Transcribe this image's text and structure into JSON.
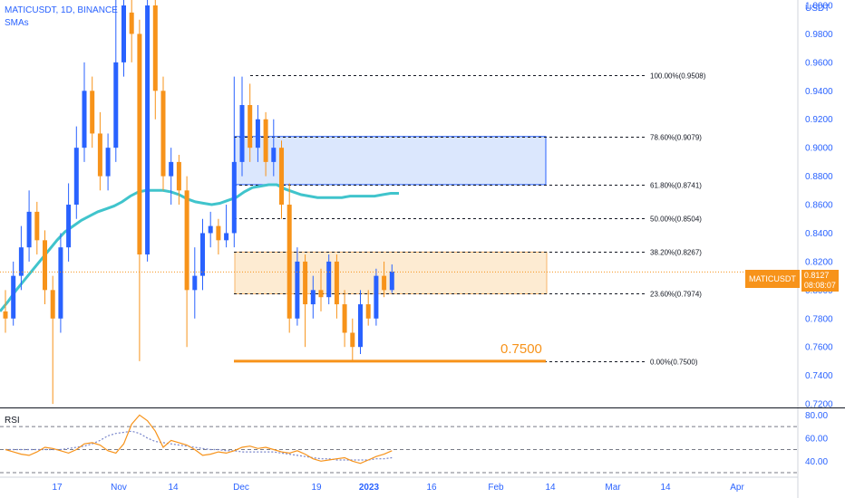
{
  "header": {
    "title": "MATICUSDT, 1D, BINANCE",
    "indicator": "SMAs",
    "currency": "USDT",
    "rsi_label": "RSI"
  },
  "price_badge": {
    "symbol": "MATICUSDT",
    "price": "0.8127",
    "countdown": "08:08:07"
  },
  "annotation": "0.7500",
  "colors": {
    "up": "#2962ff",
    "down": "#f7931a",
    "sma": "#40c4cc",
    "rsi": "#f7931a",
    "rsi_ma": "#7986cb",
    "blue_box": "#dbe7fd",
    "orange_box": "#fdebd2",
    "axis_text": "#2962ff"
  },
  "chart_data": {
    "type": "candlestick",
    "symbol": "MATICUSDT",
    "interval": "1D",
    "exchange": "BINANCE",
    "y_ticks": [
      "1.0000",
      "0.9800",
      "0.9600",
      "0.9400",
      "0.9200",
      "0.9000",
      "0.8800",
      "0.8600",
      "0.8400",
      "0.8200",
      "0.8000",
      "0.7800",
      "0.7600",
      "0.7400",
      "0.7200"
    ],
    "ylim": [
      0.7175,
      1.0
    ],
    "x_ticks": [
      "17",
      "Nov",
      "14",
      "Dec",
      "19",
      "2023",
      "16",
      "Feb",
      "14",
      "Mar",
      "14",
      "Apr"
    ],
    "last_price": 0.8127,
    "fib_levels": [
      {
        "label": "100.00%(0.9508)",
        "value": 0.9508
      },
      {
        "label": "78.60%(0.9079)",
        "value": 0.9079
      },
      {
        "label": "61.80%(0.8741)",
        "value": 0.8741
      },
      {
        "label": "50.00%(0.8504)",
        "value": 0.8504
      },
      {
        "label": "38.20%(0.8267)",
        "value": 0.8267
      },
      {
        "label": "23.60%(0.7974)",
        "value": 0.7974
      },
      {
        "label": "0.00%(0.7500)",
        "value": 0.75
      }
    ],
    "zones": [
      {
        "top": 0.9079,
        "bottom": 0.8741,
        "color": "blue"
      },
      {
        "top": 0.8267,
        "bottom": 0.7974,
        "color": "orange"
      }
    ],
    "support_line": 0.75,
    "sma_values": [
      0.785,
      0.792,
      0.8,
      0.807,
      0.814,
      0.821,
      0.828,
      0.835,
      0.841,
      0.845,
      0.849,
      0.852,
      0.855,
      0.857,
      0.859,
      0.862,
      0.866,
      0.869,
      0.87,
      0.87,
      0.87,
      0.869,
      0.867,
      0.864,
      0.862,
      0.861,
      0.86,
      0.861,
      0.863,
      0.865,
      0.869,
      0.872,
      0.873,
      0.874,
      0.874,
      0.871,
      0.869,
      0.867,
      0.866,
      0.865,
      0.865,
      0.865,
      0.865,
      0.866,
      0.866,
      0.866,
      0.866,
      0.867,
      0.868,
      0.868
    ],
    "candles": [
      [
        0.785,
        0.78,
        0.8,
        0.77
      ],
      [
        0.78,
        0.81,
        0.82,
        0.775
      ],
      [
        0.81,
        0.83,
        0.845,
        0.8
      ],
      [
        0.83,
        0.855,
        0.87,
        0.82
      ],
      [
        0.855,
        0.835,
        0.862,
        0.825
      ],
      [
        0.835,
        0.8,
        0.842,
        0.79
      ],
      [
        0.8,
        0.78,
        0.81,
        0.72
      ],
      [
        0.78,
        0.83,
        0.84,
        0.77
      ],
      [
        0.83,
        0.86,
        0.875,
        0.82
      ],
      [
        0.86,
        0.9,
        0.915,
        0.85
      ],
      [
        0.9,
        0.94,
        0.96,
        0.89
      ],
      [
        0.94,
        0.91,
        0.95,
        0.9
      ],
      [
        0.91,
        0.88,
        0.925,
        0.87
      ],
      [
        0.88,
        0.9,
        0.91,
        0.87
      ],
      [
        0.9,
        0.96,
        1.02,
        0.89
      ],
      [
        0.96,
        1.0,
        1.05,
        0.95
      ],
      [
        0.995,
        0.98,
        1.01,
        0.96
      ],
      [
        0.98,
        0.825,
        0.99,
        0.75
      ],
      [
        0.825,
        1.0,
        1.05,
        0.82
      ],
      [
        1.0,
        0.94,
        1.01,
        0.92
      ],
      [
        0.94,
        0.88,
        0.95,
        0.87
      ],
      [
        0.88,
        0.89,
        0.9,
        0.86
      ],
      [
        0.89,
        0.87,
        0.895,
        0.86
      ],
      [
        0.87,
        0.8,
        0.88,
        0.76
      ],
      [
        0.8,
        0.81,
        0.83,
        0.78
      ],
      [
        0.81,
        0.84,
        0.85,
        0.8
      ],
      [
        0.84,
        0.845,
        0.855,
        0.83
      ],
      [
        0.845,
        0.835,
        0.85,
        0.825
      ],
      [
        0.835,
        0.84,
        0.86,
        0.83
      ],
      [
        0.84,
        0.89,
        0.95,
        0.83
      ],
      [
        0.89,
        0.93,
        0.95,
        0.88
      ],
      [
        0.93,
        0.9,
        0.945,
        0.89
      ],
      [
        0.9,
        0.92,
        0.93,
        0.89
      ],
      [
        0.92,
        0.89,
        0.925,
        0.88
      ],
      [
        0.89,
        0.9,
        0.92,
        0.88
      ],
      [
        0.9,
        0.86,
        0.905,
        0.85
      ],
      [
        0.86,
        0.78,
        0.875,
        0.77
      ],
      [
        0.78,
        0.82,
        0.83,
        0.775
      ],
      [
        0.82,
        0.79,
        0.825,
        0.76
      ],
      [
        0.79,
        0.8,
        0.81,
        0.78
      ],
      [
        0.8,
        0.795,
        0.815,
        0.785
      ],
      [
        0.795,
        0.82,
        0.825,
        0.79
      ],
      [
        0.82,
        0.79,
        0.825,
        0.78
      ],
      [
        0.79,
        0.77,
        0.8,
        0.76
      ],
      [
        0.77,
        0.76,
        0.78,
        0.75
      ],
      [
        0.76,
        0.79,
        0.8,
        0.755
      ],
      [
        0.79,
        0.78,
        0.8,
        0.775
      ],
      [
        0.78,
        0.81,
        0.815,
        0.775
      ],
      [
        0.81,
        0.8,
        0.82,
        0.795
      ],
      [
        0.8,
        0.813,
        0.818,
        0.798
      ]
    ],
    "rsi": {
      "ylim": [
        30,
        85
      ],
      "y_ticks": [
        "80.00",
        "60.00",
        "40.00"
      ],
      "levels": [
        70,
        50,
        30
      ],
      "values": [
        50,
        48,
        46,
        45,
        48,
        52,
        51,
        49,
        47,
        50,
        55,
        56,
        54,
        49,
        47,
        55,
        72,
        80,
        75,
        66,
        52,
        58,
        56,
        54,
        50,
        45,
        46,
        48,
        47,
        49,
        52,
        53,
        51,
        52,
        50,
        48,
        47,
        49,
        46,
        42,
        40,
        41,
        42,
        43,
        40,
        38,
        41,
        44,
        46,
        49
      ],
      "ma_values": [
        50,
        50,
        50,
        50,
        50,
        50,
        50,
        50,
        51,
        52,
        53,
        55,
        58,
        62,
        64,
        65,
        66,
        64,
        60,
        57,
        56,
        55,
        54,
        53,
        52,
        51,
        50,
        50,
        49,
        49,
        48,
        48,
        48,
        48,
        48,
        47,
        46,
        45,
        44,
        43,
        42,
        42,
        41,
        41,
        41,
        41,
        41,
        42,
        42,
        43
      ]
    }
  }
}
